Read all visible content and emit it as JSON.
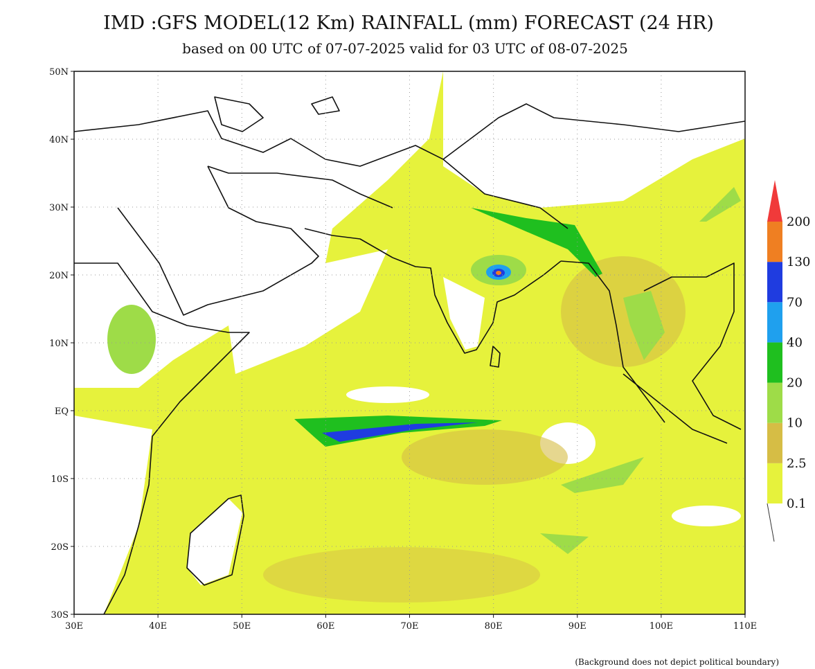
{
  "header": {
    "title": "IMD :GFS MODEL(12 Km) RAINFALL (mm) FORECAST (24 HR)",
    "subtitle": "based on 00 UTC of 07-07-2025 valid for 03 UTC of 08-07-2025"
  },
  "map": {
    "lat_labels": [
      "50N",
      "40N",
      "30N",
      "20N",
      "10N",
      "EQ",
      "10S",
      "20S",
      "30S"
    ],
    "lon_labels": [
      "30E",
      "40E",
      "50E",
      "60E",
      "70E",
      "80E",
      "90E",
      "100E",
      "110E"
    ]
  },
  "legend": {
    "levels": [
      "0.1",
      "2.5",
      "10",
      "20",
      "40",
      "70",
      "130",
      "200"
    ],
    "colors": [
      "#e6f23c",
      "#d6bd45",
      "#9edc48",
      "#1fbf1f",
      "#1fa0ee",
      "#1f3ce0",
      "#ef7f22",
      "#f03a3a"
    ]
  },
  "footnote": "(Background does not depict political boundary)"
}
